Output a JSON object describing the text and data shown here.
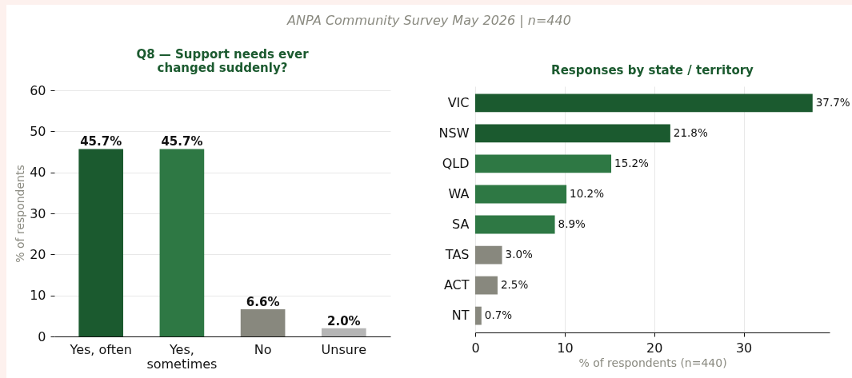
{
  "chart_data": [
    {
      "type": "bar",
      "title": "Q8 — Support needs ever changed suddenly?",
      "ylabel": "% of respondents",
      "categories": [
        "Yes, often",
        "Yes, sometimes",
        "No",
        "Unsure"
      ],
      "values": [
        45.7,
        45.7,
        6.6,
        2.0
      ],
      "colors": [
        "#1b5a2f",
        "#2e7844",
        "#88887e",
        "#b5b5b5"
      ],
      "value_labels": [
        "45.7%",
        "45.7%",
        "6.6%",
        "2.0%"
      ],
      "ylim": [
        0,
        60
      ],
      "yticks": [
        0,
        10,
        20,
        30,
        40,
        50,
        60
      ],
      "grid": "y",
      "annotations": [
        "ANPA Community Survey May 2026  |  n=440"
      ]
    },
    {
      "type": "bar",
      "orientation": "horizontal",
      "title": "Responses by state / territory",
      "xlabel": "% of respondents (n=440)",
      "categories": [
        "VIC",
        "NSW",
        "QLD",
        "WA",
        "SA",
        "TAS",
        "ACT",
        "NT"
      ],
      "values": [
        37.7,
        21.8,
        15.2,
        10.2,
        8.9,
        3.0,
        2.5,
        0.7
      ],
      "colors": [
        "#1b5a2f",
        "#1b5a2f",
        "#2e7844",
        "#2e7844",
        "#2e7844",
        "#88887e",
        "#88887e",
        "#88887e"
      ],
      "value_labels": [
        "37.7%",
        "21.8%",
        "15.2%",
        "10.2%",
        "8.9%",
        "3.0%",
        "2.5%",
        "0.7%"
      ],
      "xlim": [
        0,
        39.6
      ],
      "xticks": [
        0,
        10,
        20,
        30
      ],
      "grid": "x"
    }
  ]
}
